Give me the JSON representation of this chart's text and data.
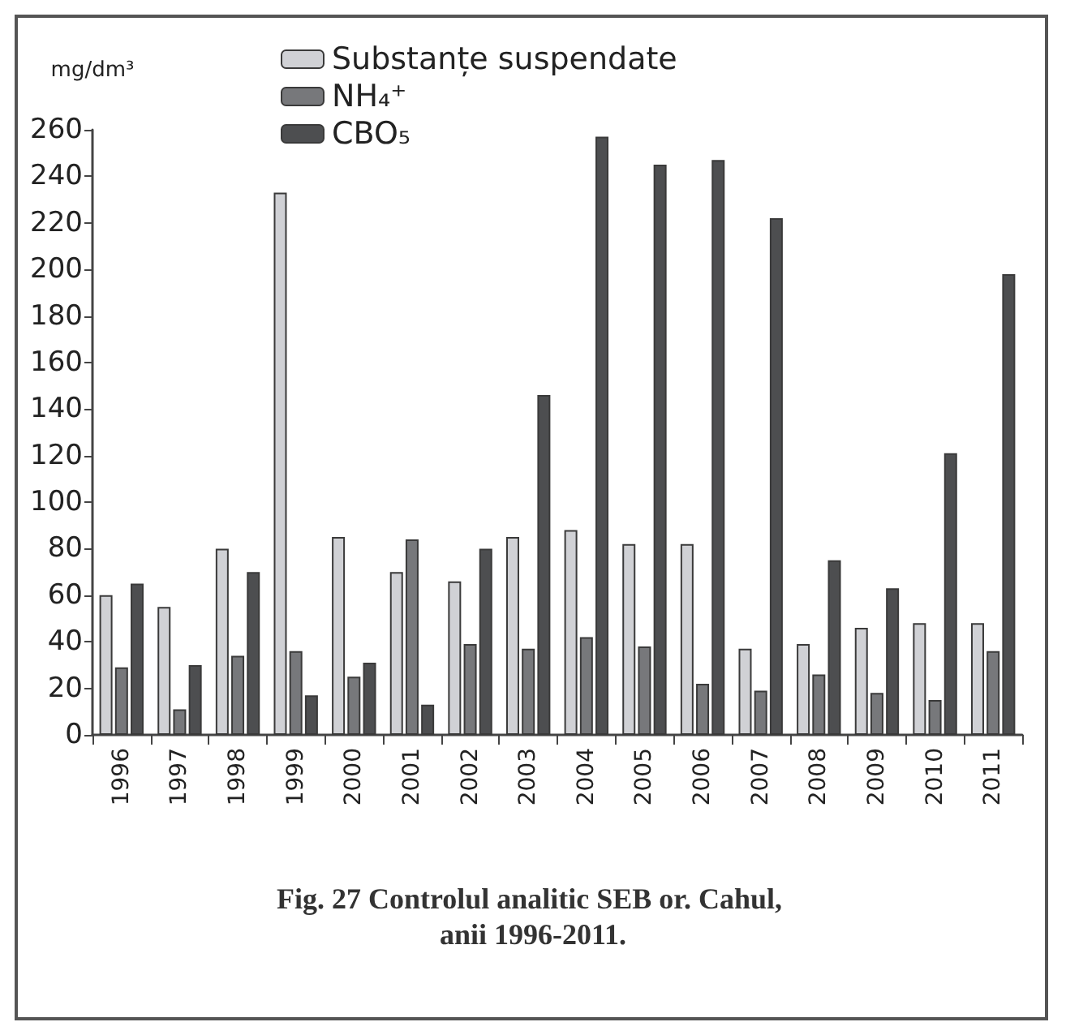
{
  "chart_data": {
    "type": "bar",
    "title": "Fig. 27 Controlul analitic SEB or. Cahul, anii 1996-2011.",
    "ylabel": "mg/dm³",
    "categories": [
      "1996",
      "1997",
      "1998",
      "1999",
      "2000",
      "2001",
      "2002",
      "2003",
      "2004",
      "2005",
      "2006",
      "2007",
      "2008",
      "2009",
      "2010",
      "2011"
    ],
    "series": [
      {
        "name": "Substanțe suspendate",
        "color": "#d0d1d5",
        "values": [
          60,
          55,
          80,
          233,
          85,
          70,
          66,
          85,
          88,
          82,
          82,
          37,
          39,
          46,
          48,
          48
        ]
      },
      {
        "name": "NH₄⁺",
        "color": "#77787b",
        "values": [
          29,
          11,
          34,
          36,
          25,
          84,
          39,
          37,
          42,
          38,
          22,
          19,
          26,
          18,
          15,
          36
        ]
      },
      {
        "name": "CBO₅",
        "color": "#4d4e50",
        "values": [
          65,
          30,
          70,
          17,
          31,
          13,
          80,
          146,
          257,
          245,
          247,
          222,
          75,
          63,
          121,
          198
        ]
      }
    ],
    "ylim": [
      0,
      260
    ],
    "yticks": [
      0,
      20,
      40,
      60,
      80,
      100,
      120,
      140,
      160,
      180,
      200,
      220,
      240,
      260
    ],
    "grid": false,
    "legend": "top"
  }
}
